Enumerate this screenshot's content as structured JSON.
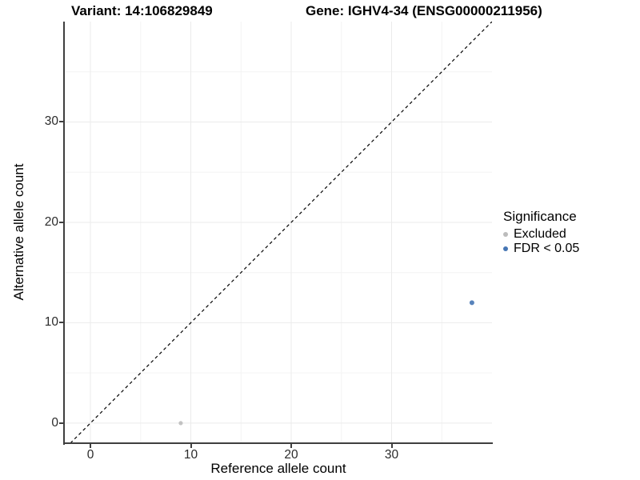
{
  "chart_data": {
    "type": "scatter",
    "titles": {
      "left": "Variant: 14:106829849",
      "right": "Gene: IGHV4-34 (ENSG00000211956)"
    },
    "xlabel": "Reference allele count",
    "ylabel": "Alternative allele count",
    "xlim": [
      -2.55,
      40.0
    ],
    "ylim": [
      -2.0,
      40.0
    ],
    "xticks": [
      0,
      10,
      20,
      30
    ],
    "yticks": [
      0,
      10,
      20,
      30
    ],
    "minor_gridlines": [
      5,
      15,
      25,
      35
    ],
    "grid": {
      "major_color": "#ebebeb",
      "minor_color": "#f4f4f4"
    },
    "identity_line": {
      "slope": 1,
      "intercept": 0,
      "linetype": "dashed",
      "color": "#000000"
    },
    "series": [
      {
        "name": "Excluded",
        "color": "#bcbcbc",
        "point_radius": 2.6,
        "points": [
          {
            "x": 9,
            "y": 0
          }
        ]
      },
      {
        "name": "FDR < 0.05",
        "color": "#4676b4",
        "point_radius": 3.0,
        "points": [
          {
            "x": 38,
            "y": 12
          }
        ]
      }
    ],
    "legend": {
      "title": "Significance",
      "position": "right"
    }
  }
}
